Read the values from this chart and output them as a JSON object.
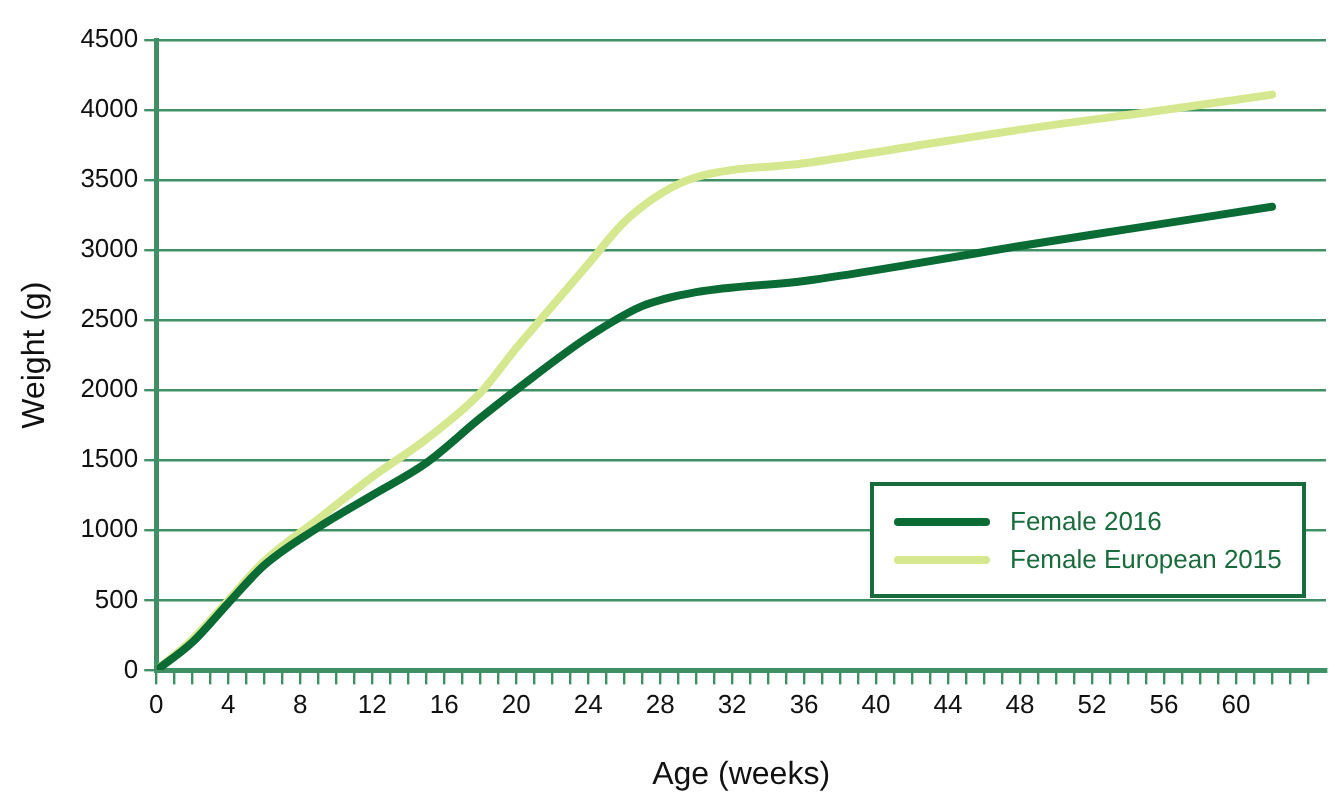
{
  "chart_data": {
    "type": "line",
    "xlabel": "Age (weeks)",
    "ylabel": "Weight (g)",
    "xlim": [
      0,
      65
    ],
    "ylim": [
      0,
      4500
    ],
    "xticks": [
      0,
      {
        "value": 1,
        "label": null
      },
      {
        "value": 2,
        "label": null
      },
      {
        "value": 3,
        "label": null
      },
      4,
      {
        "value": 5,
        "label": null
      },
      {
        "value": 6,
        "label": null
      },
      {
        "value": 7,
        "label": null
      },
      8,
      {
        "value": 9,
        "label": null
      },
      {
        "value": 10,
        "label": null
      },
      {
        "value": 11,
        "label": null
      },
      12,
      {
        "value": 13,
        "label": null
      },
      {
        "value": 14,
        "label": null
      },
      {
        "value": 15,
        "label": null
      },
      16,
      {
        "value": 17,
        "label": null
      },
      {
        "value": 18,
        "label": null
      },
      {
        "value": 19,
        "label": null
      },
      20,
      {
        "value": 21,
        "label": null
      },
      {
        "value": 22,
        "label": null
      },
      {
        "value": 23,
        "label": null
      },
      24,
      {
        "value": 25,
        "label": null
      },
      {
        "value": 26,
        "label": null
      },
      {
        "value": 27,
        "label": null
      },
      28,
      {
        "value": 29,
        "label": null
      },
      {
        "value": 30,
        "label": null
      },
      {
        "value": 31,
        "label": null
      },
      32,
      {
        "value": 33,
        "label": null
      },
      {
        "value": 34,
        "label": null
      },
      {
        "value": 35,
        "label": null
      },
      36,
      {
        "value": 37,
        "label": null
      },
      {
        "value": 38,
        "label": null
      },
      {
        "value": 39,
        "label": null
      },
      40,
      {
        "value": 41,
        "label": null
      },
      {
        "value": 42,
        "label": null
      },
      {
        "value": 43,
        "label": null
      },
      44,
      {
        "value": 45,
        "label": null
      },
      {
        "value": 46,
        "label": null
      },
      {
        "value": 47,
        "label": null
      },
      48,
      {
        "value": 49,
        "label": null
      },
      {
        "value": 50,
        "label": null
      },
      {
        "value": 51,
        "label": null
      },
      52,
      {
        "value": 53,
        "label": null
      },
      {
        "value": 54,
        "label": null
      },
      {
        "value": 55,
        "label": null
      },
      56,
      {
        "value": 57,
        "label": null
      },
      {
        "value": 58,
        "label": null
      },
      {
        "value": 59,
        "label": null
      },
      60,
      {
        "value": 61,
        "label": null
      },
      {
        "value": 62,
        "label": null
      },
      {
        "value": 63,
        "label": null
      },
      {
        "value": 64,
        "label": null
      }
    ],
    "yticks": [
      0,
      500,
      1000,
      1500,
      2000,
      2500,
      3000,
      3500,
      4000,
      4500
    ],
    "grid": "y",
    "legend": "bottom right",
    "marker": "none",
    "line_style": "solid",
    "series": [
      {
        "name": "Female 2016",
        "color": "#0b6b35",
        "x": [
          0,
          2,
          4,
          6,
          9,
          12,
          15,
          18,
          21,
          24,
          27,
          30,
          36,
          42,
          48,
          54,
          62
        ],
        "values": [
          0,
          200,
          480,
          750,
          1020,
          1250,
          1480,
          1800,
          2100,
          2380,
          2600,
          2700,
          2780,
          2900,
          3030,
          3150,
          3310
        ]
      },
      {
        "name": "Female European 2015",
        "color": "#d5e88f",
        "x": [
          0,
          2,
          4,
          6,
          9,
          12,
          15,
          18,
          20,
          22,
          24,
          26,
          28,
          30,
          36,
          42,
          48,
          56,
          62
        ],
        "values": [
          0,
          220,
          500,
          780,
          1080,
          1380,
          1650,
          1980,
          2300,
          2600,
          2900,
          3200,
          3400,
          3520,
          3620,
          3740,
          3860,
          4000,
          4110
        ]
      }
    ]
  }
}
